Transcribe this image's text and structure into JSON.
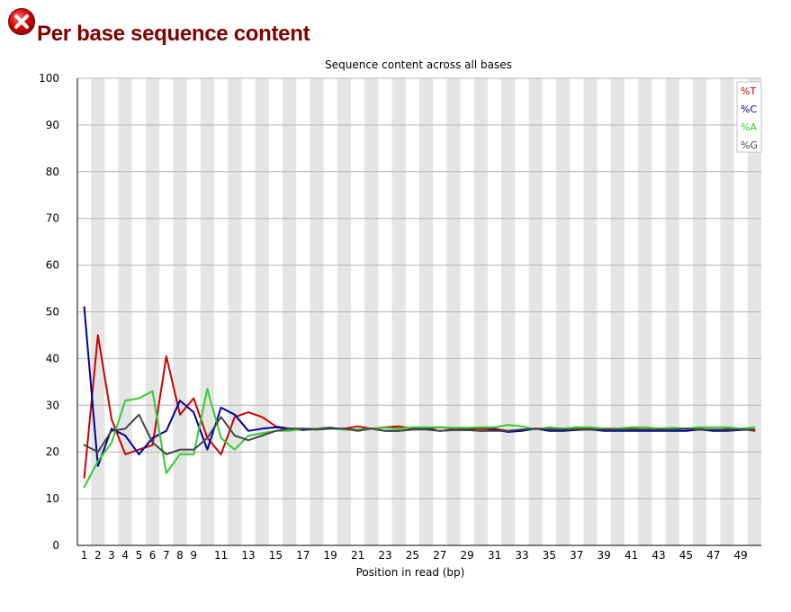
{
  "header": {
    "title": "Per base sequence content",
    "status_icon": "fail-x-icon",
    "status_color": "#cc0000"
  },
  "chart_data": {
    "type": "line",
    "title": "Sequence content across all bases",
    "xlabel": "Position in read (bp)",
    "ylabel": "",
    "ylim": [
      0,
      100
    ],
    "y_ticks": [
      0,
      10,
      20,
      30,
      40,
      50,
      60,
      70,
      80,
      90,
      100
    ],
    "x": [
      1,
      2,
      3,
      4,
      5,
      6,
      7,
      8,
      9,
      10,
      11,
      12,
      13,
      14,
      15,
      16,
      17,
      18,
      19,
      20,
      21,
      22,
      23,
      24,
      25,
      26,
      27,
      28,
      29,
      30,
      31,
      32,
      33,
      34,
      35,
      36,
      37,
      38,
      39,
      40,
      41,
      42,
      43,
      44,
      45,
      46,
      47,
      48,
      49,
      50
    ],
    "x_tick_labels": [
      "1",
      "2",
      "3",
      "4",
      "5",
      "6",
      "7",
      "8",
      "9",
      "11",
      "13",
      "15",
      "17",
      "19",
      "21",
      "23",
      "25",
      "27",
      "29",
      "31",
      "33",
      "35",
      "37",
      "39",
      "41",
      "43",
      "45",
      "47",
      "49"
    ],
    "grid": "horizontal",
    "background_bands": "alternating grey",
    "legend_position": "top-right",
    "series": [
      {
        "name": "%T",
        "color": "#cc0000",
        "values": [
          14.5,
          45,
          27,
          19.5,
          20.5,
          21.5,
          40.5,
          28,
          31.5,
          23,
          19.5,
          27.5,
          28.5,
          27.5,
          25.5,
          25,
          24.8,
          24.8,
          25,
          25,
          25.5,
          25,
          25.3,
          25.5,
          25,
          25,
          25.3,
          25,
          25,
          25,
          25,
          24.5,
          24.8,
          25,
          25,
          25,
          25,
          25,
          25,
          25,
          25,
          24.8,
          25,
          25,
          25,
          25,
          24.5,
          25,
          25,
          24.5
        ]
      },
      {
        "name": "%C",
        "color": "#000099",
        "values": [
          51,
          17,
          25,
          23.5,
          19.5,
          23,
          24.5,
          31,
          28.5,
          20.5,
          29.5,
          28,
          24.5,
          25,
          25.3,
          25,
          24.7,
          25,
          25.2,
          24.8,
          24.8,
          25,
          24.5,
          24.5,
          24.8,
          25,
          24.5,
          24.7,
          24.7,
          24.5,
          24.7,
          24.3,
          24.5,
          25,
          24.5,
          24.5,
          24.7,
          24.8,
          24.5,
          24.5,
          24.5,
          24.5,
          24.5,
          24.5,
          24.5,
          24.8,
          24.5,
          24.5,
          24.7,
          24.8
        ]
      },
      {
        "name": "%A",
        "color": "#33cc33",
        "values": [
          12.5,
          18,
          22,
          31,
          31.5,
          33,
          15.5,
          19.5,
          19.5,
          33.5,
          23,
          20.5,
          23.5,
          24,
          24.5,
          24.5,
          25,
          25,
          25,
          24.8,
          24.8,
          25,
          25.2,
          25,
          25.3,
          25.3,
          25.3,
          25.2,
          25.2,
          25.3,
          25.3,
          25.8,
          25.5,
          24.8,
          25.3,
          25,
          25.3,
          25.3,
          25,
          25,
          25.3,
          25.3,
          25,
          25.2,
          25,
          25.3,
          25.3,
          25.3,
          25,
          25.3
        ]
      },
      {
        "name": "%G",
        "color": "#444444",
        "values": [
          21.5,
          20,
          24.5,
          25,
          28,
          22,
          19.5,
          20.5,
          20.5,
          23,
          27.5,
          23.5,
          22.5,
          23.5,
          24.5,
          25,
          25,
          24.8,
          25,
          25,
          24.5,
          25,
          24.5,
          24.5,
          24.8,
          24.8,
          24.5,
          24.7,
          24.7,
          24.5,
          24.5,
          24.5,
          24.8,
          25,
          24.8,
          24.8,
          24.8,
          24.8,
          24.8,
          24.8,
          24.8,
          24.8,
          24.8,
          24.8,
          25,
          24.8,
          24.8,
          24.8,
          24.8,
          24.8
        ]
      }
    ]
  }
}
